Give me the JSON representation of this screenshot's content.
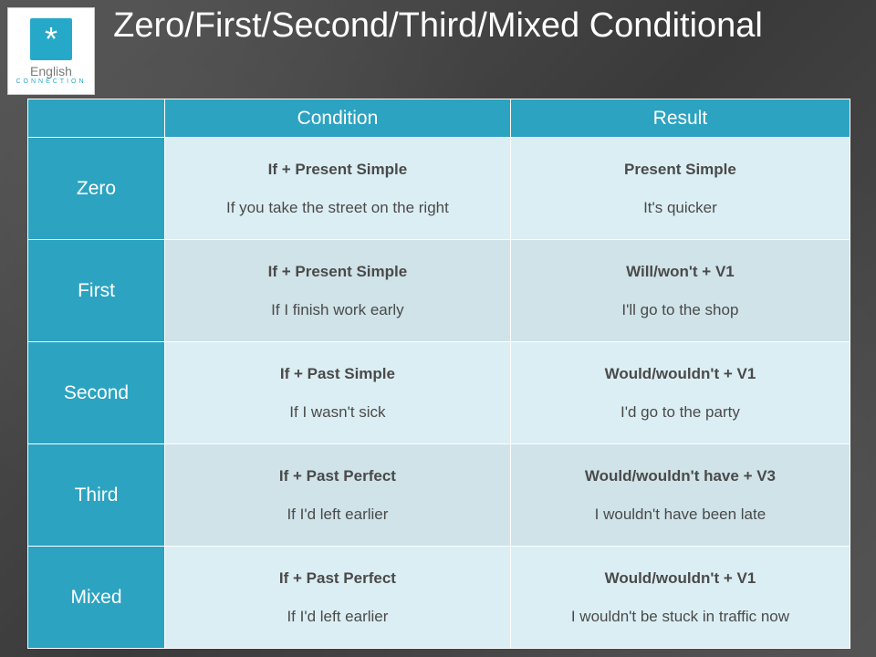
{
  "logo": {
    "icon_glyph": "*",
    "top_text": "English",
    "bottom_text": "CONNECTION",
    "icon_bg": "#26a9c9"
  },
  "title": "Zero/First/Second/Third/Mixed Conditional",
  "headers": {
    "condition": "Condition",
    "result": "Result"
  },
  "rows": [
    {
      "label": "Zero",
      "condition_formula": "If + Present Simple",
      "condition_example": "If you take the street on the right",
      "result_formula": "Present Simple",
      "result_example": "It's quicker",
      "alt": false
    },
    {
      "label": "First",
      "condition_formula": "If + Present Simple",
      "condition_example": "If I finish work early",
      "result_formula": "Will/won't + V1",
      "result_example": "I'll go to the shop",
      "alt": true
    },
    {
      "label": "Second",
      "condition_formula": "If + Past Simple",
      "condition_example": "If I wasn't sick",
      "result_formula": "Would/wouldn't + V1",
      "result_example": "I'd go to the party",
      "alt": false
    },
    {
      "label": "Third",
      "condition_formula": "If + Past Perfect",
      "condition_example": "If I'd left earlier",
      "result_formula": "Would/wouldn't have + V3",
      "result_example": "I wouldn't have been late",
      "alt": true
    },
    {
      "label": "Mixed",
      "condition_formula": "If + Past Perfect",
      "condition_example": "If I'd left earlier",
      "result_formula": "Would/wouldn't + V1",
      "result_example": "I wouldn't be stuck in traffic now",
      "alt": false
    }
  ],
  "colors": {
    "header_bg": "#2ca3c1",
    "cell_light": "#dbeef3",
    "cell_grey": "#cfe3e8",
    "page_bg": "#4a4a4a",
    "title_color": "#ffffff"
  }
}
